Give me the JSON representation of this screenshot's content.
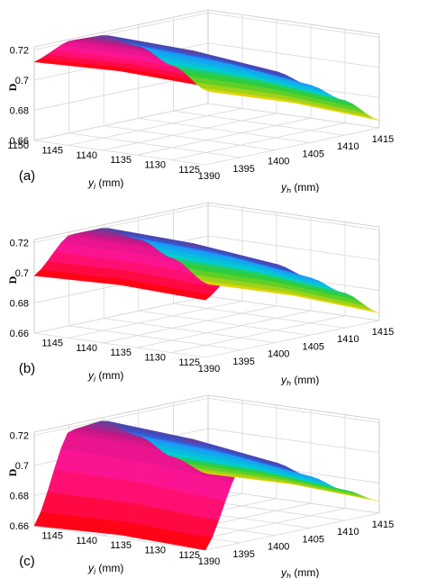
{
  "chart_data": [
    {
      "type": "surface",
      "panel_label": "(a)",
      "xlabel": "y",
      "xlabel_sub": "h",
      "xlabel_unit": " (mm)",
      "ylabel": "y",
      "ylabel_sub": "i",
      "ylabel_unit": " (mm)",
      "zlabel": "D",
      "x_ticks": [
        1390,
        1395,
        1400,
        1405,
        1410,
        1415
      ],
      "y_ticks": [
        1125,
        1130,
        1135,
        1140,
        1145,
        1150
      ],
      "z_ticks": [
        0.66,
        0.68,
        0.7,
        0.72
      ],
      "xlim": [
        1390,
        1415
      ],
      "ylim": [
        1125,
        1150
      ],
      "zlim": [
        0.66,
        0.722
      ],
      "grid": true,
      "colormap": [
        "#ff0000",
        "#ff1493",
        "#c71585",
        "#6a3d9a",
        "#3b4cc0",
        "#1e90ff",
        "#00ced1",
        "#32cd32",
        "#ffd700"
      ],
      "surface_samples": [
        {
          "yh": 1390,
          "yi_low": 0.712,
          "yi_high": 0.712
        },
        {
          "yh": 1395,
          "yi_low": 0.718,
          "yi_high": 0.721
        },
        {
          "yh": 1400,
          "yi_low": 0.712,
          "yi_high": 0.72
        },
        {
          "yh": 1405,
          "yi_low": 0.698,
          "yi_high": 0.708
        },
        {
          "yh": 1410,
          "yi_low": 0.683,
          "yi_high": 0.69
        },
        {
          "yh": 1415,
          "yi_low": 0.665,
          "yi_high": 0.668
        }
      ]
    },
    {
      "type": "surface",
      "panel_label": "(b)",
      "xlabel": "y",
      "xlabel_sub": "h",
      "xlabel_unit": " (mm)",
      "ylabel": "y",
      "ylabel_sub": "i",
      "ylabel_unit": " (mm)",
      "zlabel": "D",
      "x_ticks": [
        1390,
        1395,
        1400,
        1405,
        1410,
        1415
      ],
      "y_ticks": [
        1125,
        1130,
        1135,
        1140,
        1145
      ],
      "z_ticks": [
        0.66,
        0.68,
        0.7,
        0.72
      ],
      "xlim": [
        1390,
        1415
      ],
      "ylim": [
        1125,
        1150
      ],
      "zlim": [
        0.66,
        0.722
      ],
      "grid": true,
      "colormap": [
        "#ff0000",
        "#ff1493",
        "#c71585",
        "#6a3d9a",
        "#3b4cc0",
        "#1e90ff",
        "#00ced1",
        "#32cd32",
        "#ffd700"
      ],
      "surface_samples": [
        {
          "yh": 1390,
          "yi_low": 0.698,
          "yi_high": 0.698
        },
        {
          "yh": 1395,
          "yi_low": 0.716,
          "yi_high": 0.72
        },
        {
          "yh": 1400,
          "yi_low": 0.712,
          "yi_high": 0.72
        },
        {
          "yh": 1405,
          "yi_low": 0.698,
          "yi_high": 0.708
        },
        {
          "yh": 1410,
          "yi_low": 0.683,
          "yi_high": 0.69
        },
        {
          "yh": 1415,
          "yi_low": 0.665,
          "yi_high": 0.668
        }
      ]
    },
    {
      "type": "surface",
      "panel_label": "(c)",
      "xlabel": "y",
      "xlabel_sub": "h",
      "xlabel_unit": " (mm)",
      "ylabel": "y",
      "ylabel_sub": "i",
      "ylabel_unit": " (mm)",
      "zlabel": "D",
      "x_ticks": [
        1390,
        1395,
        1400,
        1405,
        1410,
        1415
      ],
      "y_ticks": [
        1125,
        1130,
        1135,
        1140,
        1145
      ],
      "z_ticks": [
        0.66,
        0.68,
        0.7,
        0.72
      ],
      "xlim": [
        1390,
        1415
      ],
      "ylim": [
        1125,
        1150
      ],
      "zlim": [
        0.66,
        0.722
      ],
      "grid": true,
      "colormap": [
        "#ff0000",
        "#ff1493",
        "#c71585",
        "#6a3d9a",
        "#3b4cc0",
        "#1e90ff",
        "#00ced1",
        "#32cd32",
        "#ffd700"
      ],
      "surface_samples": [
        {
          "yh": 1390,
          "yi_low": 0.66,
          "yi_high": 0.66
        },
        {
          "yh": 1395,
          "yi_low": 0.71,
          "yi_high": 0.718
        },
        {
          "yh": 1400,
          "yi_low": 0.708,
          "yi_high": 0.72
        },
        {
          "yh": 1405,
          "yi_low": 0.694,
          "yi_high": 0.705
        },
        {
          "yh": 1410,
          "yi_low": 0.68,
          "yi_high": 0.686
        },
        {
          "yh": 1415,
          "yi_low": 0.668,
          "yi_high": 0.67
        }
      ]
    }
  ]
}
